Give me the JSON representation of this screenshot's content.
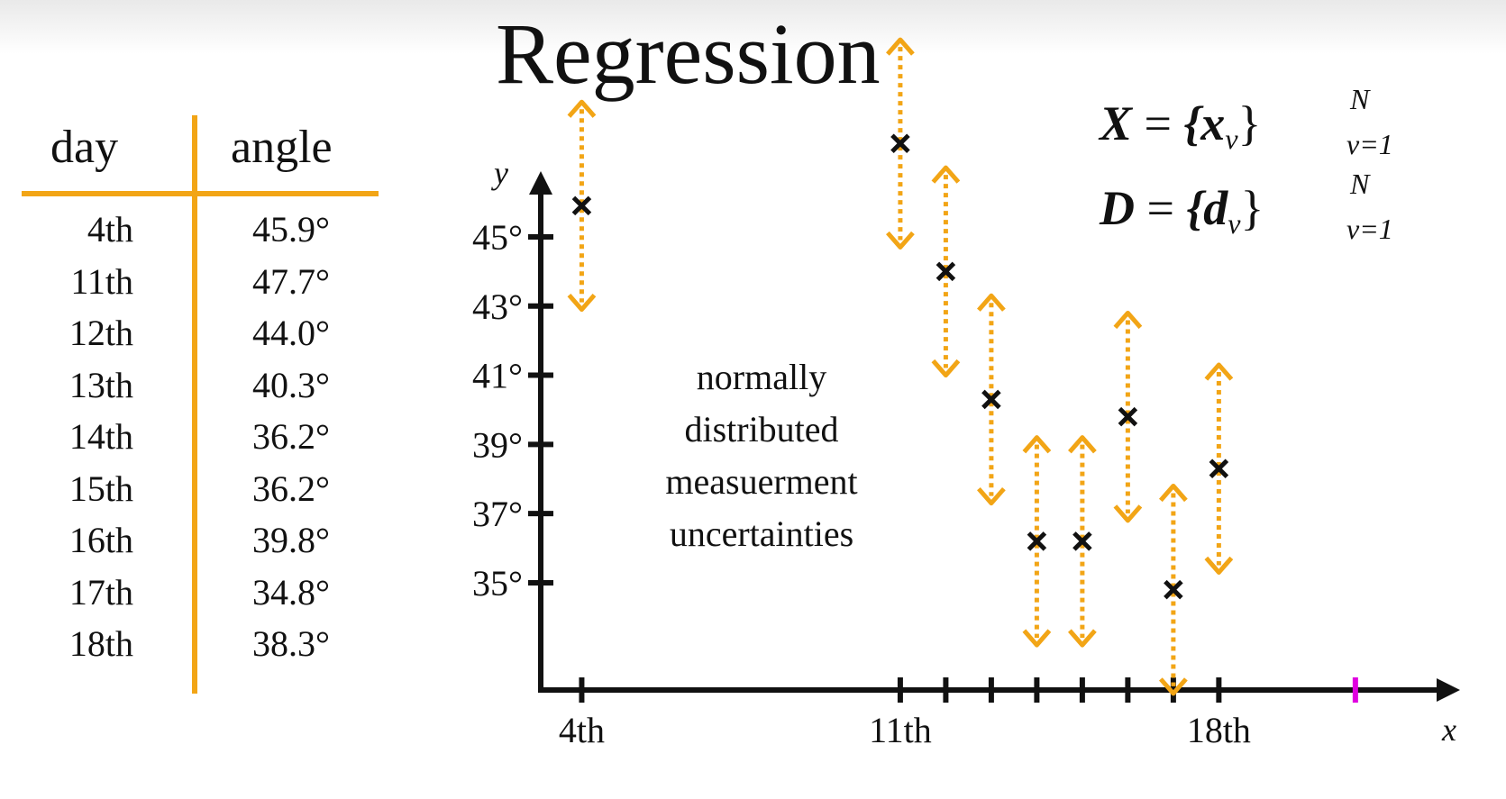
{
  "title": "Regression",
  "table": {
    "headers": [
      "day",
      "angle"
    ],
    "rows": [
      [
        "4th",
        "45.9°"
      ],
      [
        "11th",
        "47.7°"
      ],
      [
        "12th",
        "44.0°"
      ],
      [
        "13th",
        "40.3°"
      ],
      [
        "14th",
        "36.2°"
      ],
      [
        "15th",
        "36.2°"
      ],
      [
        "16th",
        "39.8°"
      ],
      [
        "17th",
        "34.8°"
      ],
      [
        "18th",
        "38.3°"
      ]
    ]
  },
  "formulas": {
    "x_set": {
      "lhs": "X",
      "eq": "=",
      "body": "{x",
      "sub_inner": "ν",
      "close": "}",
      "sup": "N",
      "sub": "ν=1"
    },
    "d_set": {
      "lhs": "D",
      "eq": "=",
      "body": "{d",
      "sub_inner": "ν",
      "close": "}",
      "sup": "N",
      "sub": "ν=1"
    }
  },
  "annotation": [
    "normally",
    "distributed",
    "measuerment",
    "uncertainties"
  ],
  "colors": {
    "accent": "#f2a516",
    "marker": "#111111",
    "highlight_tick": "#e000e0",
    "axis": "#111111"
  },
  "chart_data": {
    "type": "scatter",
    "xlabel": "x",
    "ylabel": "y",
    "x_tick_labels": [
      {
        "x": 4,
        "label": "4th"
      },
      {
        "x": 11,
        "label": "11th"
      },
      {
        "x": 18,
        "label": "18th"
      }
    ],
    "x_ticks": [
      4,
      11,
      12,
      13,
      14,
      15,
      16,
      17,
      18
    ],
    "highlight_tick": 21,
    "y_ticks": [
      {
        "y": 35,
        "label": "35°"
      },
      {
        "y": 37,
        "label": "37°"
      },
      {
        "y": 39,
        "label": "39°"
      },
      {
        "y": 41,
        "label": "41°"
      },
      {
        "y": 43,
        "label": "43°"
      },
      {
        "y": 45,
        "label": "45°"
      }
    ],
    "xlim": [
      3.1,
      23.3
    ],
    "ylim": [
      31.9,
      46.9
    ],
    "points": [
      {
        "x": 4,
        "y": 45.9
      },
      {
        "x": 11,
        "y": 47.7
      },
      {
        "x": 12,
        "y": 44.0
      },
      {
        "x": 13,
        "y": 40.3
      },
      {
        "x": 14,
        "y": 36.2
      },
      {
        "x": 15,
        "y": 36.2
      },
      {
        "x": 16,
        "y": 39.8
      },
      {
        "x": 17,
        "y": 34.8
      },
      {
        "x": 18,
        "y": 38.3
      }
    ],
    "uncertainty": 3.0,
    "legend": "none",
    "grid": false
  }
}
